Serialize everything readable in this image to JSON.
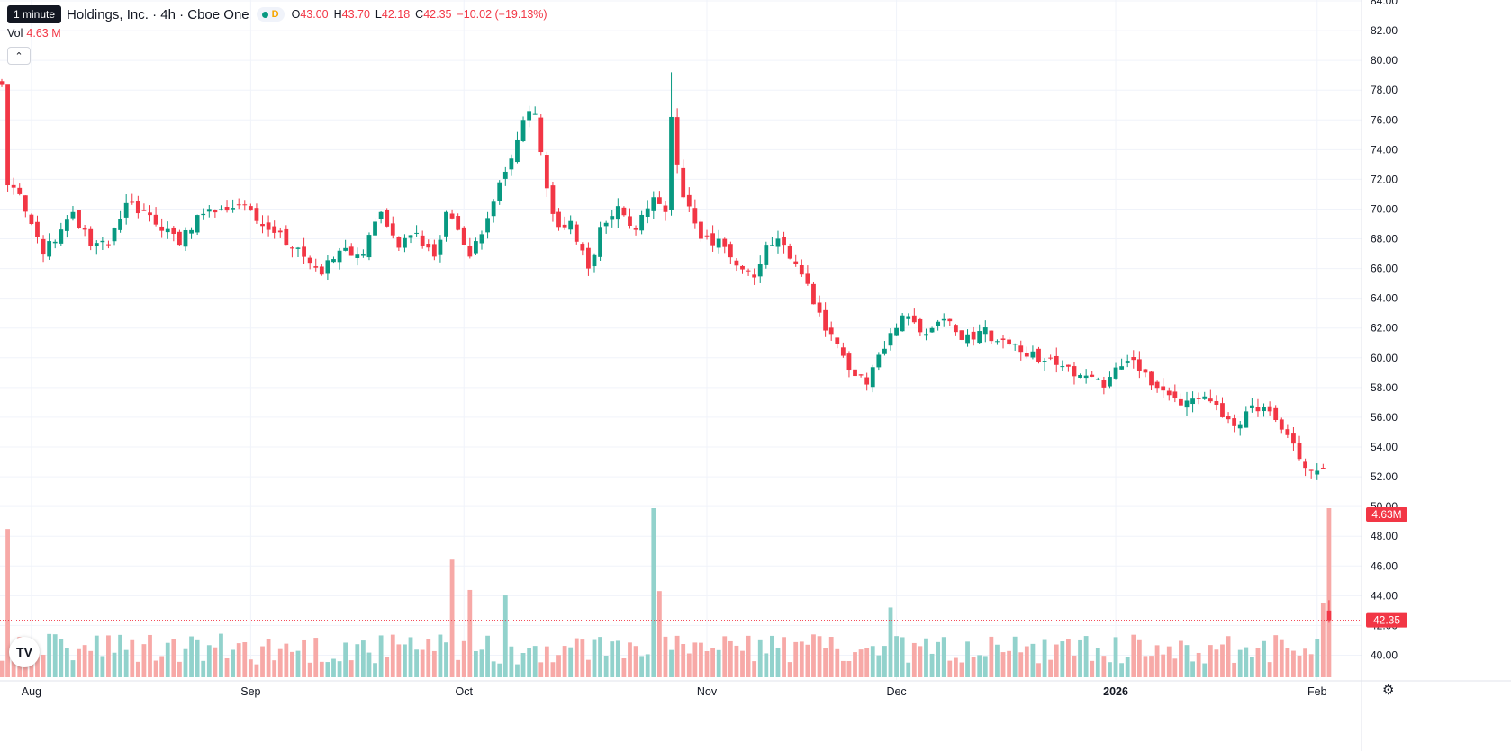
{
  "header": {
    "interval": "1 minute",
    "title": "Holdings, Inc. · 4h · Cboe One",
    "o_label": "O",
    "o": "43.00",
    "h_label": "H",
    "h": "43.70",
    "l_label": "L",
    "l": "42.18",
    "c_label": "C",
    "c": "42.35",
    "change": "−10.02 (−19.13%)",
    "d_badge": "D",
    "vol_label": "Vol",
    "vol_value": "4.63 M"
  },
  "icons": {
    "collapse": "chevron-up-icon",
    "logo": "tradingview-logo",
    "settings": "gear-icon"
  },
  "colors": {
    "up": "#089981",
    "down": "#f23645",
    "up_volume": "#92d2cc",
    "down_volume": "#f7a9a7",
    "grid": "#f0f3fa",
    "axis_text": "#131722"
  },
  "chart_data": {
    "type": "candlestick",
    "y_ticks": [
      "84.00",
      "82.00",
      "80.00",
      "78.00",
      "76.00",
      "74.00",
      "72.00",
      "70.00",
      "68.00",
      "66.00",
      "64.00",
      "62.00",
      "60.00",
      "58.00",
      "56.00",
      "54.00",
      "52.00",
      "50.00",
      "48.00",
      "46.00",
      "44.00",
      "42.00",
      "40.00"
    ],
    "ylim": [
      39.0,
      84.0
    ],
    "x_ticks": [
      {
        "label": "Aug",
        "bar": 5,
        "bold": false
      },
      {
        "label": "Sep",
        "bar": 42,
        "bold": false
      },
      {
        "label": "Oct",
        "bar": 78,
        "bold": false
      },
      {
        "label": "Nov",
        "bar": 119,
        "bold": false
      },
      {
        "label": "Dec",
        "bar": 151,
        "bold": false
      },
      {
        "label": "2026",
        "bar": 188,
        "bold": true
      },
      {
        "label": "Feb",
        "bar": 222,
        "bold": false
      }
    ],
    "anchors": [
      [
        0,
        78.4
      ],
      [
        1,
        71.6
      ],
      [
        3,
        71.0
      ],
      [
        5,
        69.0
      ],
      [
        7,
        67.0
      ],
      [
        9,
        67.8
      ],
      [
        12,
        69.8
      ],
      [
        15,
        67.5
      ],
      [
        18,
        67.6
      ],
      [
        21,
        70.4
      ],
      [
        25,
        69.6
      ],
      [
        30,
        67.6
      ],
      [
        33,
        69.6
      ],
      [
        37,
        70.0
      ],
      [
        40,
        70.3
      ],
      [
        43,
        69.2
      ],
      [
        46,
        68.4
      ],
      [
        50,
        67.4
      ],
      [
        54,
        65.6
      ],
      [
        57,
        67.2
      ],
      [
        61,
        67.0
      ],
      [
        64,
        69.8
      ],
      [
        67,
        67.4
      ],
      [
        70,
        68.4
      ],
      [
        73,
        66.8
      ],
      [
        75,
        69.8
      ],
      [
        77,
        68.6
      ],
      [
        79,
        66.8
      ],
      [
        82,
        69.4
      ],
      [
        84,
        71.8
      ],
      [
        86,
        73.4
      ],
      [
        88,
        76.0
      ],
      [
        90,
        76.4
      ],
      [
        92,
        71.4
      ],
      [
        94,
        68.8
      ],
      [
        96,
        69.2
      ],
      [
        99,
        66.0
      ],
      [
        101,
        68.8
      ],
      [
        104,
        70.2
      ],
      [
        107,
        68.6
      ],
      [
        110,
        70.8
      ],
      [
        112,
        69.8
      ],
      [
        113,
        76.2
      ],
      [
        114,
        73.0
      ],
      [
        115,
        70.8
      ],
      [
        118,
        68.0
      ],
      [
        121,
        68.0
      ],
      [
        124,
        66.2
      ],
      [
        127,
        65.4
      ],
      [
        129,
        67.6
      ],
      [
        132,
        67.6
      ],
      [
        135,
        65.6
      ],
      [
        137,
        63.6
      ],
      [
        140,
        61.6
      ],
      [
        143,
        59.2
      ],
      [
        146,
        58.2
      ],
      [
        148,
        60.2
      ],
      [
        151,
        62.0
      ],
      [
        153,
        62.8
      ],
      [
        156,
        61.6
      ],
      [
        159,
        62.6
      ],
      [
        162,
        61.2
      ],
      [
        165,
        61.8
      ],
      [
        169,
        61.2
      ],
      [
        172,
        60.4
      ],
      [
        176,
        59.8
      ],
      [
        180,
        59.4
      ],
      [
        183,
        58.8
      ],
      [
        186,
        58.0
      ],
      [
        190,
        59.8
      ],
      [
        193,
        59.0
      ],
      [
        196,
        57.8
      ],
      [
        199,
        56.8
      ],
      [
        203,
        57.4
      ],
      [
        206,
        56.0
      ],
      [
        208,
        55.4
      ],
      [
        211,
        56.8
      ],
      [
        214,
        56.4
      ],
      [
        217,
        54.8
      ],
      [
        220,
        52.6
      ],
      [
        222,
        52.4
      ],
      [
        223,
        52.6
      ],
      [
        224,
        42.35
      ]
    ],
    "volume_spikes": [
      [
        1,
        4.06
      ],
      [
        76,
        3.22
      ],
      [
        79,
        2.39
      ],
      [
        85,
        2.24
      ],
      [
        110,
        4.63
      ],
      [
        111,
        2.36
      ],
      [
        150,
        1.91
      ],
      [
        223,
        2.02
      ],
      [
        224,
        4.63
      ]
    ],
    "last_price": 42.35,
    "last_price_label": "42.35",
    "volume_label": "4.63 M",
    "volume_max_label": "4.63M"
  }
}
